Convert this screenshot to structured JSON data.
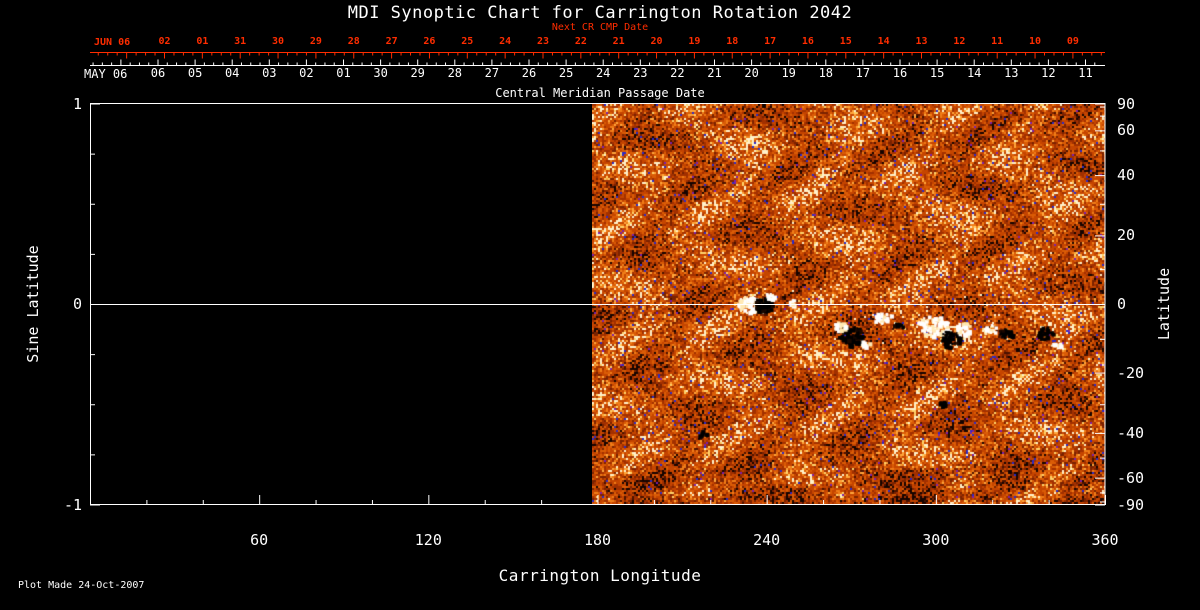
{
  "colors": {
    "background": "#000000",
    "text": "#ffffff",
    "red": "#ff2d00",
    "data_base": "#c54500"
  },
  "chart_data": {
    "type": "heatmap",
    "title": "MDI Synoptic Chart for Carrington Rotation 2042",
    "xlabel": "Carrington Longitude",
    "ylabel_left": "Sine Latitude",
    "ylabel_right": "Latitude",
    "xlim": [
      0,
      360
    ],
    "x_ticks": [
      60,
      120,
      180,
      240,
      300,
      360
    ],
    "x_minor_step": 20,
    "sine_ticks": {
      "values": [
        1,
        0,
        -1
      ],
      "labels": [
        "1",
        "0",
        "-1"
      ]
    },
    "lat_ticks": {
      "values": [
        90,
        60,
        40,
        20,
        0,
        -20,
        -40,
        -60,
        -90
      ],
      "labels": [
        "90",
        "60",
        "40",
        "20",
        "0",
        "-20",
        "-40",
        "-60",
        "-90"
      ]
    },
    "lat_minor_step": 10,
    "top_axis_next_cr": {
      "title": "Next CR CMP Date",
      "month": "JUN 06",
      "days": [
        "02",
        "01",
        "31",
        "30",
        "29",
        "28",
        "27",
        "26",
        "25",
        "24",
        "23",
        "22",
        "21",
        "20",
        "19",
        "18",
        "17",
        "16",
        "15",
        "14",
        "13",
        "12",
        "11",
        "10",
        "09"
      ]
    },
    "top_axis_cmp": {
      "title": "Central Meridian Passage Date",
      "month": "MAY 06",
      "days": [
        "06",
        "05",
        "04",
        "03",
        "02",
        "01",
        "30",
        "29",
        "28",
        "27",
        "26",
        "25",
        "24",
        "23",
        "22",
        "21",
        "20",
        "19",
        "18",
        "17",
        "16",
        "15",
        "14",
        "13",
        "12",
        "11"
      ]
    },
    "data_lon_range": [
      178,
      360
    ],
    "equator_line_sine_lat": 0,
    "palette": {
      "blue": "#2a2ac8",
      "purple": "#7a1fae",
      "stops": [
        [
          0.04,
          "#160400"
        ],
        [
          0.1,
          "#4a1200"
        ],
        [
          0.22,
          "#7a2200"
        ],
        [
          0.42,
          "#a23000"
        ],
        [
          0.7,
          "#c54500"
        ],
        [
          0.88,
          "#da5c06"
        ],
        [
          0.97,
          "#f07d18"
        ],
        [
          1.03,
          "#ffa63c"
        ],
        [
          1.08,
          "#ffd36b"
        ],
        [
          9.0,
          "#fff1c9"
        ]
      ]
    },
    "active_regions": [
      {
        "lon": 233.0,
        "lat": 0.3,
        "r_lon": 3.5,
        "r_lat": 2.3,
        "polarity": "positive",
        "n": 60
      },
      {
        "lon": 238.4,
        "lat": -0.1,
        "r_lon": 3.2,
        "r_lat": 2.3,
        "polarity": "negative",
        "n": 70
      },
      {
        "lon": 240.5,
        "lat": 2.3,
        "r_lon": 1.8,
        "r_lat": 1.2,
        "polarity": "positive",
        "n": 15
      },
      {
        "lon": 249.0,
        "lat": 0.9,
        "r_lon": 1.4,
        "r_lat": 0.9,
        "polarity": "positive",
        "n": 10
      },
      {
        "lon": 269.5,
        "lat": -8.9,
        "r_lon": 4.3,
        "r_lat": 2.9,
        "polarity": "negative",
        "n": 80
      },
      {
        "lon": 265.6,
        "lat": -6.0,
        "r_lon": 2.1,
        "r_lat": 1.5,
        "polarity": "positive",
        "n": 18
      },
      {
        "lon": 274.1,
        "lat": -11.2,
        "r_lon": 2.1,
        "r_lat": 1.2,
        "polarity": "positive",
        "n": 14
      },
      {
        "lon": 280.9,
        "lat": -3.7,
        "r_lon": 3.5,
        "r_lat": 1.7,
        "polarity": "positive",
        "n": 30
      },
      {
        "lon": 286.2,
        "lat": -6.0,
        "r_lon": 1.8,
        "r_lat": 1.2,
        "polarity": "negative",
        "n": 10
      },
      {
        "lon": 298.6,
        "lat": -6.0,
        "r_lon": 5.7,
        "r_lat": 2.9,
        "polarity": "positive",
        "n": 110
      },
      {
        "lon": 304.7,
        "lat": -9.8,
        "r_lon": 3.5,
        "r_lat": 2.6,
        "polarity": "negative",
        "n": 60
      },
      {
        "lon": 309.6,
        "lat": -6.9,
        "r_lon": 2.8,
        "r_lat": 2.0,
        "polarity": "positive",
        "n": 30
      },
      {
        "lon": 319.2,
        "lat": -7.2,
        "r_lon": 2.5,
        "r_lat": 1.5,
        "polarity": "positive",
        "n": 22
      },
      {
        "lon": 324.2,
        "lat": -8.0,
        "r_lon": 2.5,
        "r_lat": 1.5,
        "polarity": "negative",
        "n": 26
      },
      {
        "lon": 338.4,
        "lat": -8.3,
        "r_lon": 2.8,
        "r_lat": 2.0,
        "polarity": "negative",
        "n": 40
      },
      {
        "lon": 342.3,
        "lat": -11.5,
        "r_lon": 1.8,
        "r_lat": 0.9,
        "polarity": "positive",
        "n": 10
      },
      {
        "lon": 302.2,
        "lat": -29.6,
        "r_lon": 1.4,
        "r_lat": 0.9,
        "polarity": "negative",
        "n": 8
      },
      {
        "lon": 217.0,
        "lat": -40.0,
        "r_lon": 1.8,
        "r_lat": 0.9,
        "polarity": "negative",
        "n": 8
      }
    ],
    "footer": "Plot Made 24-Oct-2007"
  }
}
